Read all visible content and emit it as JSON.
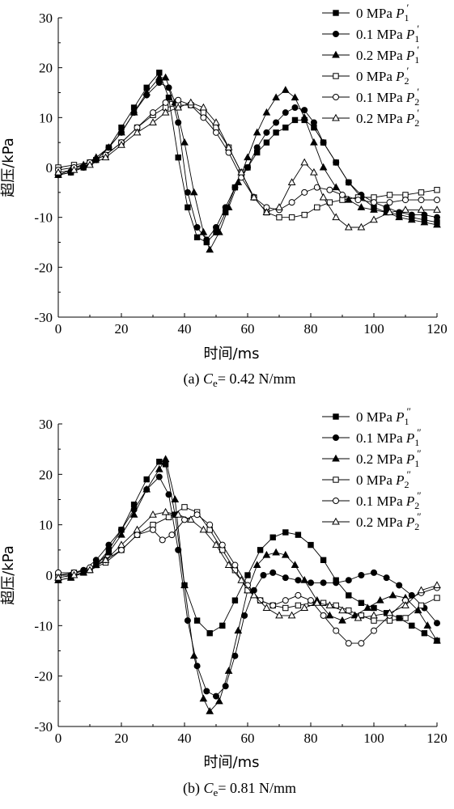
{
  "chart_data": [
    {
      "type": "line",
      "caption_prefix": "(a) ",
      "caption_var": "C",
      "caption_sub": "e",
      "caption_rest": "= 0.42 N/mm",
      "xlabel": "时间/ms",
      "ylabel": "超压/kPa",
      "xlim": [
        0,
        120
      ],
      "ylim": [
        -30,
        30
      ],
      "xticks": [
        "0",
        "20",
        "40",
        "60",
        "80",
        "100",
        "120"
      ],
      "yticks": [
        "-30",
        "-20",
        "-10",
        "0",
        "10",
        "20",
        "30"
      ],
      "legend_position": "top-right",
      "grid": false,
      "series": [
        {
          "label": "0 MPa",
          "sym": "P",
          "sub": "1",
          "prime": "′",
          "marker": "square-filled",
          "x": [
            0,
            4,
            8,
            12,
            16,
            20,
            24,
            28,
            32,
            35,
            38,
            41,
            44,
            47,
            50,
            53,
            56,
            60,
            63,
            66,
            69,
            72,
            75,
            78,
            81,
            84,
            88,
            92,
            96,
            100,
            104,
            108,
            112,
            116,
            120
          ],
          "y": [
            -1.5,
            -1,
            0,
            1.5,
            4,
            8,
            12,
            16,
            19,
            14,
            2,
            -8,
            -14,
            -15,
            -13,
            -9,
            -4,
            0,
            3,
            5,
            7,
            8,
            9.5,
            9.5,
            8,
            5,
            1,
            -3,
            -6,
            -8,
            -9,
            -9.5,
            -10,
            -10.5,
            -11
          ]
        },
        {
          "label": "0.1 MPa",
          "sym": "P",
          "sub": "1",
          "prime": "′",
          "marker": "circle-filled",
          "x": [
            0,
            4,
            8,
            12,
            16,
            20,
            24,
            28,
            32,
            35,
            38,
            41,
            44,
            47,
            50,
            53,
            56,
            60,
            63,
            66,
            69,
            72,
            75,
            78,
            81,
            84,
            88,
            92,
            96,
            100,
            104,
            108,
            112,
            116,
            120
          ],
          "y": [
            -1.5,
            -1,
            0,
            1.5,
            4,
            7,
            11,
            14.5,
            17,
            16,
            9,
            -5,
            -12,
            -14.5,
            -12,
            -8,
            -4,
            0,
            4,
            7,
            9,
            11,
            12,
            11.5,
            9,
            5,
            1,
            -3,
            -5.5,
            -7,
            -8,
            -9,
            -9.5,
            -9.5,
            -10
          ]
        },
        {
          "label": "0.2 MPa",
          "sym": "P",
          "sub": "1",
          "prime": "′",
          "marker": "triangle-filled",
          "x": [
            0,
            4,
            8,
            12,
            16,
            20,
            24,
            28,
            32,
            34,
            37,
            40,
            43,
            46,
            48,
            51,
            54,
            57,
            60,
            63,
            66,
            69,
            72,
            75,
            78,
            81,
            84,
            88,
            92,
            96,
            100,
            104,
            108,
            112,
            116,
            120
          ],
          "y": [
            -1.5,
            -0.5,
            0.5,
            2,
            4,
            7,
            11,
            15,
            18,
            18,
            13,
            5,
            -5,
            -13,
            -16.5,
            -13,
            -8,
            -3,
            2,
            7,
            11,
            14,
            15.5,
            14,
            10,
            5,
            0,
            -4,
            -6.5,
            -8,
            -8.5,
            -9,
            -10,
            -10.5,
            -11,
            -11.5
          ]
        },
        {
          "label": "0 MPa",
          "sym": "P",
          "sub": "2",
          "prime": "′",
          "marker": "square-open",
          "x": [
            0,
            5,
            10,
            15,
            20,
            25,
            30,
            34,
            38,
            42,
            46,
            50,
            54,
            58,
            62,
            66,
            70,
            74,
            78,
            82,
            86,
            90,
            95,
            100,
            105,
            110,
            115,
            120
          ],
          "y": [
            0,
            0.5,
            1,
            2.5,
            5,
            8,
            10.5,
            12,
            12.5,
            12.5,
            11,
            8,
            4,
            -1,
            -6,
            -9,
            -10,
            -10,
            -9.5,
            -8,
            -7,
            -6.5,
            -6,
            -6,
            -5.5,
            -5.5,
            -5,
            -4.5
          ]
        },
        {
          "label": "0.1 MPa",
          "sym": "P",
          "sub": "2",
          "prime": "′",
          "marker": "circle-open",
          "x": [
            0,
            5,
            10,
            15,
            20,
            25,
            30,
            34,
            38,
            42,
            46,
            50,
            54,
            58,
            62,
            66,
            70,
            74,
            78,
            82,
            86,
            90,
            95,
            100,
            105,
            110,
            115,
            120
          ],
          "y": [
            -0.5,
            0,
            1,
            2.5,
            5,
            8,
            11,
            13,
            13.5,
            12.5,
            10,
            7,
            3,
            -2,
            -6,
            -8,
            -8.5,
            -7,
            -5,
            -4,
            -4.5,
            -5.5,
            -6.5,
            -7,
            -7,
            -6.5,
            -6.5,
            -6.5
          ]
        },
        {
          "label": "0.2 MPa",
          "sym": "P",
          "sub": "2",
          "prime": "′",
          "marker": "triangle-open",
          "x": [
            0,
            5,
            10,
            15,
            20,
            25,
            30,
            34,
            38,
            42,
            46,
            50,
            54,
            58,
            62,
            66,
            70,
            74,
            78,
            81,
            84,
            88,
            92,
            96,
            100,
            105,
            110,
            115,
            120
          ],
          "y": [
            -1,
            -0.5,
            0.5,
            2,
            4.5,
            7,
            9,
            11,
            12,
            13,
            12,
            9,
            4,
            -1,
            -6,
            -9,
            -8,
            -3,
            1,
            -1,
            -6,
            -10,
            -12,
            -12,
            -10.5,
            -9,
            -8.5,
            -8.5,
            -8.5
          ]
        }
      ]
    },
    {
      "type": "line",
      "caption_prefix": "(b) ",
      "caption_var": "C",
      "caption_sub": "e",
      "caption_rest": "= 0.81 N/mm",
      "xlabel": "时间/ms",
      "ylabel": "超压/kPa",
      "xlim": [
        0,
        120
      ],
      "ylim": [
        -30,
        30
      ],
      "xticks": [
        "0",
        "20",
        "40",
        "60",
        "80",
        "100",
        "120"
      ],
      "yticks": [
        "-30",
        "-20",
        "-10",
        "0",
        "10",
        "20",
        "30"
      ],
      "legend_position": "top-right",
      "grid": false,
      "series": [
        {
          "label": "0 MPa",
          "sym": "P",
          "sub": "1",
          "prime": "″",
          "marker": "square-filled",
          "x": [
            0,
            4,
            8,
            12,
            16,
            20,
            24,
            28,
            32,
            34,
            37,
            40,
            44,
            48,
            52,
            56,
            60,
            64,
            68,
            72,
            76,
            80,
            84,
            88,
            92,
            96,
            100,
            104,
            108,
            112,
            116,
            120
          ],
          "y": [
            -1,
            -0.5,
            0.5,
            2,
            5,
            9,
            14,
            19,
            22.5,
            22,
            12,
            -2,
            -9,
            -11.5,
            -10,
            -5,
            0,
            5,
            7.5,
            8.5,
            8,
            6,
            3,
            -1,
            -4,
            -5.5,
            -6.5,
            -7.5,
            -8.5,
            -10,
            -11.5,
            -13
          ]
        },
        {
          "label": "0.1 MPa",
          "sym": "P",
          "sub": "1",
          "prime": "″",
          "marker": "circle-filled",
          "x": [
            0,
            4,
            8,
            12,
            16,
            20,
            24,
            28,
            32,
            35,
            38,
            41,
            44,
            47,
            50,
            53,
            56,
            59,
            62,
            65,
            68,
            72,
            76,
            80,
            84,
            88,
            92,
            96,
            100,
            104,
            108,
            112,
            116,
            120
          ],
          "y": [
            0,
            0,
            1,
            3,
            6,
            9,
            13,
            17,
            19.5,
            16,
            5,
            -9,
            -18,
            -23,
            -24,
            -22,
            -16,
            -8,
            -3,
            0,
            0.5,
            -0.5,
            -1,
            -1.5,
            -1.5,
            -1.5,
            -1,
            0,
            0.5,
            -0.5,
            -2,
            -4,
            -6.5,
            -9.5
          ]
        },
        {
          "label": "0.2 MPa",
          "sym": "P",
          "sub": "1",
          "prime": "″",
          "marker": "triangle-filled",
          "x": [
            0,
            4,
            8,
            12,
            16,
            20,
            24,
            28,
            32,
            34,
            37,
            40,
            43,
            46,
            48,
            51,
            54,
            57,
            60,
            63,
            66,
            69,
            72,
            75,
            78,
            82,
            86,
            90,
            94,
            98,
            102,
            106,
            110,
            114,
            117,
            120
          ],
          "y": [
            -1,
            -0.5,
            0.5,
            2,
            4.5,
            8,
            12,
            17,
            21,
            23,
            15,
            -2,
            -16,
            -24.5,
            -27,
            -25,
            -19,
            -11,
            -3,
            2,
            4,
            4.5,
            4,
            2,
            -1,
            -5,
            -8,
            -9,
            -8,
            -6.5,
            -5,
            -4,
            -4.5,
            -7,
            -10,
            -13
          ]
        },
        {
          "label": "0 MPa",
          "sym": "P",
          "sub": "2",
          "prime": "″",
          "marker": "square-open",
          "x": [
            0,
            5,
            10,
            15,
            20,
            25,
            30,
            35,
            40,
            44,
            48,
            52,
            56,
            60,
            64,
            68,
            72,
            76,
            80,
            84,
            88,
            92,
            96,
            100,
            105,
            110,
            115,
            120
          ],
          "y": [
            0,
            0.5,
            1,
            2.5,
            5,
            8,
            10,
            11.5,
            13.5,
            12.5,
            9,
            5,
            1,
            -3,
            -5,
            -6,
            -6.5,
            -6,
            -5.5,
            -5.5,
            -6,
            -7,
            -8,
            -9,
            -9,
            -8.5,
            -6,
            -4.5
          ]
        },
        {
          "label": "0.1 MPa",
          "sym": "P",
          "sub": "2",
          "prime": "″",
          "marker": "circle-open",
          "x": [
            0,
            5,
            10,
            15,
            20,
            25,
            30,
            33,
            36,
            40,
            44,
            48,
            52,
            56,
            60,
            64,
            68,
            72,
            76,
            80,
            84,
            88,
            92,
            96,
            100,
            105,
            110,
            115,
            120
          ],
          "y": [
            0.5,
            0.5,
            1.5,
            3,
            5,
            8,
            9,
            7,
            8,
            11,
            12,
            10,
            6,
            2,
            -2,
            -5,
            -6,
            -5,
            -4,
            -5,
            -8,
            -11,
            -13.5,
            -13.5,
            -11,
            -8,
            -5,
            -3.5,
            -2.5
          ]
        },
        {
          "label": "0.2 MPa",
          "sym": "P",
          "sub": "2",
          "prime": "″",
          "marker": "triangle-open",
          "x": [
            0,
            5,
            10,
            15,
            20,
            25,
            30,
            34,
            38,
            42,
            46,
            50,
            54,
            58,
            62,
            66,
            70,
            74,
            78,
            82,
            86,
            90,
            95,
            100,
            105,
            110,
            115,
            120
          ],
          "y": [
            -0.5,
            0,
            1,
            3,
            6,
            9,
            12,
            12.5,
            12,
            11,
            9,
            6,
            2,
            -1,
            -4,
            -6.5,
            -8,
            -8,
            -6.5,
            -5.5,
            -6,
            -7,
            -8.5,
            -8,
            -7.5,
            -6,
            -3,
            -2
          ]
        }
      ]
    }
  ]
}
